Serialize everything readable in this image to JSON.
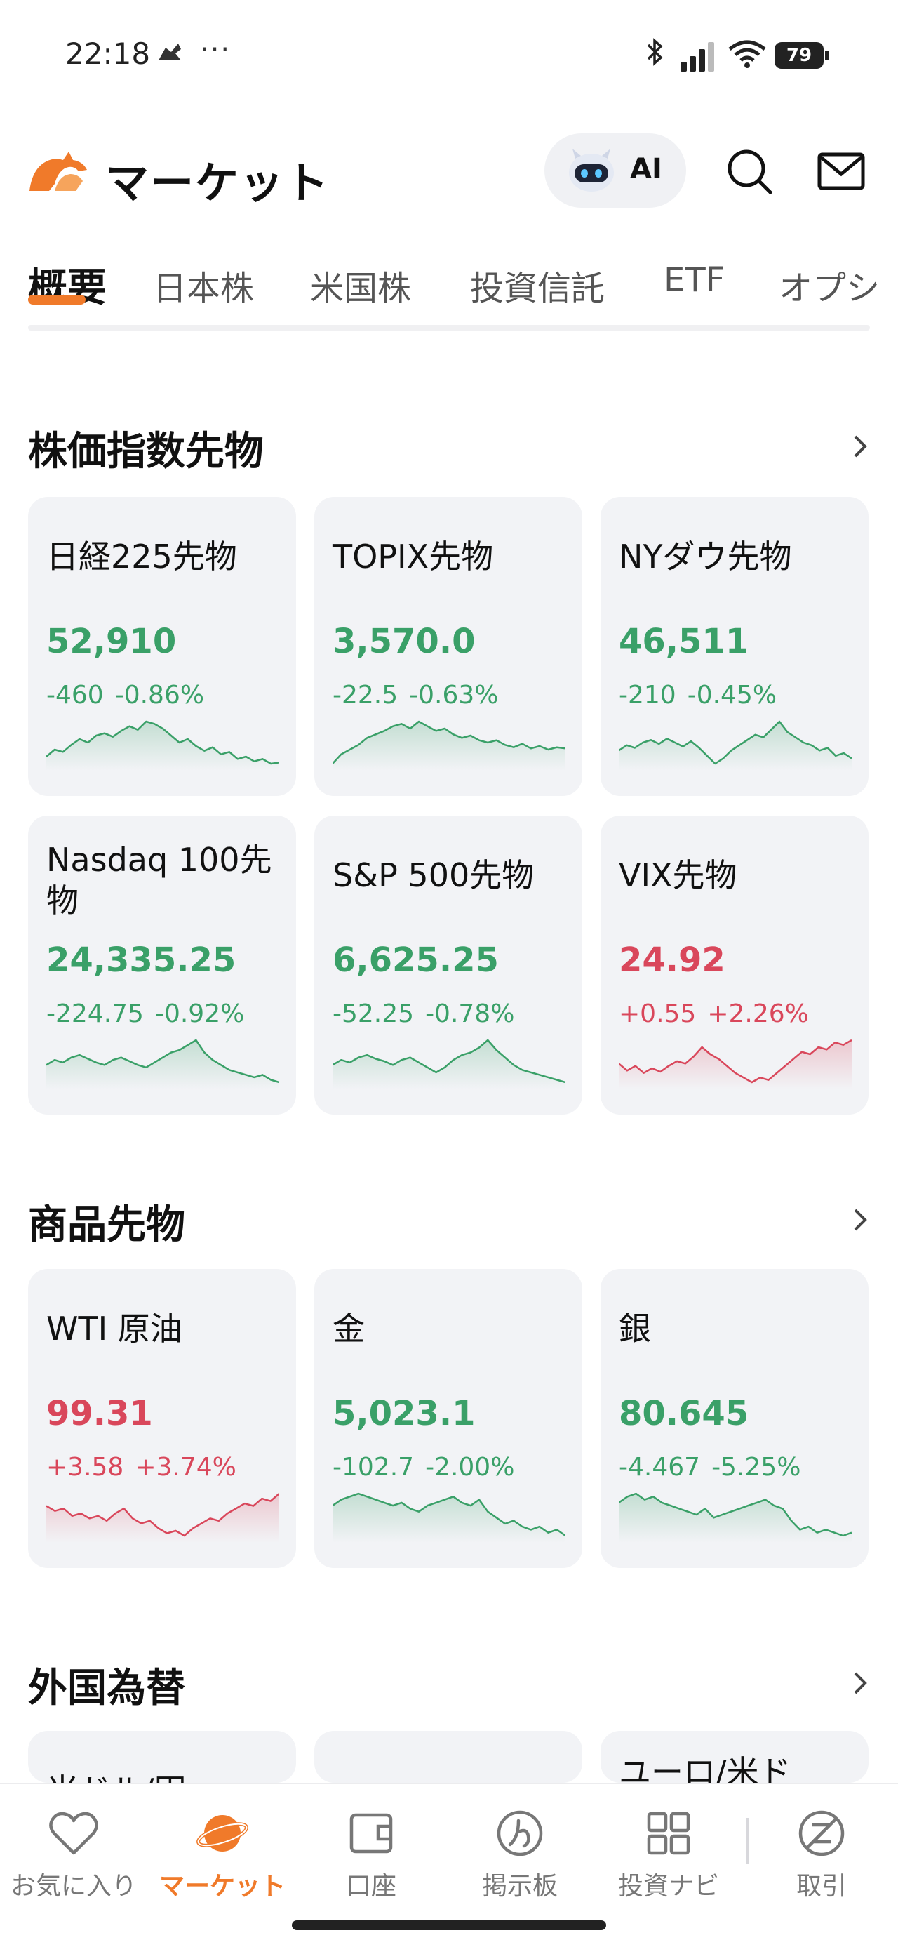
{
  "status": {
    "time": "22:18",
    "dots": "···",
    "battery": "79"
  },
  "header": {
    "title": "マーケット",
    "ai_label": "AI"
  },
  "tabs": [
    "概要",
    "日本株",
    "米国株",
    "投資信託",
    "ETF",
    "オプシ"
  ],
  "sections": {
    "index_futures": {
      "title": "株価指数先物",
      "cards": [
        {
          "name": "日経225先物",
          "price": "52,910",
          "change": "-460",
          "pct": "-0.86%",
          "trend": "down",
          "spark": [
            40,
            46,
            44,
            50,
            55,
            52,
            58,
            60,
            57,
            62,
            66,
            63,
            70,
            68,
            64,
            58,
            52,
            55,
            49,
            45,
            48,
            42,
            44,
            38,
            40,
            36,
            38,
            34,
            35
          ]
        },
        {
          "name": "TOPIX先物",
          "price": "3,570.0",
          "change": "-22.5",
          "pct": "-0.63%",
          "trend": "down",
          "spark": [
            30,
            38,
            42,
            46,
            52,
            55,
            58,
            62,
            64,
            60,
            66,
            62,
            58,
            60,
            55,
            52,
            54,
            50,
            48,
            50,
            46,
            44,
            47,
            43,
            45,
            42,
            44,
            43
          ]
        },
        {
          "name": "NYダウ先物",
          "price": "46,511",
          "change": "-210",
          "pct": "-0.45%",
          "trend": "down",
          "spark": [
            44,
            48,
            46,
            50,
            52,
            49,
            53,
            50,
            47,
            51,
            46,
            40,
            34,
            38,
            44,
            48,
            52,
            56,
            54,
            60,
            66,
            58,
            54,
            50,
            48,
            44,
            46,
            40,
            42,
            38
          ]
        }
      ]
    },
    "index_futures_row2": {
      "cards": [
        {
          "name": "Nasdaq 100先物",
          "price": "24,335.25",
          "change": "-224.75",
          "pct": "-0.92%",
          "trend": "down",
          "spark": [
            50,
            54,
            52,
            56,
            58,
            55,
            52,
            50,
            54,
            56,
            53,
            50,
            48,
            52,
            56,
            60,
            62,
            66,
            70,
            60,
            54,
            50,
            46,
            44,
            42,
            40,
            42,
            38,
            36
          ]
        },
        {
          "name": "S&P 500先物",
          "price": "6,625.25",
          "change": "-52.25",
          "pct": "-0.78%",
          "trend": "down",
          "spark": [
            50,
            54,
            52,
            56,
            58,
            55,
            53,
            50,
            54,
            56,
            52,
            48,
            44,
            48,
            54,
            58,
            60,
            64,
            70,
            62,
            56,
            50,
            46,
            44,
            42,
            40,
            38,
            36
          ]
        },
        {
          "name": "VIX先物",
          "price": "24.92",
          "change": "+0.55",
          "pct": "+2.26%",
          "trend": "up",
          "spark": [
            52,
            46,
            50,
            44,
            48,
            45,
            50,
            54,
            52,
            58,
            66,
            60,
            56,
            50,
            44,
            40,
            36,
            40,
            38,
            44,
            50,
            56,
            62,
            60,
            66,
            64,
            70,
            68,
            72
          ]
        }
      ]
    },
    "commodity_futures": {
      "title": "商品先物",
      "cards": [
        {
          "name": "WTI 原油",
          "price": "99.31",
          "change": "+3.58",
          "pct": "+3.74%",
          "trend": "up",
          "spark": [
            60,
            56,
            58,
            52,
            54,
            50,
            52,
            48,
            54,
            58,
            50,
            46,
            48,
            42,
            38,
            40,
            36,
            42,
            46,
            50,
            48,
            54,
            58,
            62,
            60,
            66,
            64,
            70
          ]
        },
        {
          "name": "金",
          "price": "5,023.1",
          "change": "-102.7",
          "pct": "-2.00%",
          "trend": "down",
          "spark": [
            56,
            60,
            62,
            64,
            62,
            60,
            58,
            56,
            58,
            54,
            52,
            56,
            58,
            60,
            62,
            58,
            56,
            60,
            52,
            48,
            44,
            46,
            42,
            40,
            42,
            38,
            40,
            36
          ]
        },
        {
          "name": "銀",
          "price": "80.645",
          "change": "-4.467",
          "pct": "-5.25%",
          "trend": "down",
          "spark": [
            60,
            64,
            66,
            62,
            64,
            60,
            58,
            56,
            54,
            52,
            56,
            50,
            52,
            54,
            56,
            58,
            60,
            62,
            58,
            56,
            48,
            42,
            44,
            40,
            42,
            40,
            38,
            40
          ]
        }
      ]
    },
    "forex": {
      "title": "外国為替",
      "partial_cards": [
        "米ドル/円",
        "",
        "ユーロ/米ド"
      ]
    }
  },
  "bottom_nav": [
    {
      "label": "お気に入り",
      "icon": "heart-icon"
    },
    {
      "label": "マーケット",
      "icon": "planet-icon"
    },
    {
      "label": "口座",
      "icon": "wallet-icon"
    },
    {
      "label": "掲示板",
      "icon": "board-icon"
    },
    {
      "label": "投資ナビ",
      "icon": "grid-icon"
    },
    {
      "label": "取引",
      "icon": "trade-icon"
    }
  ],
  "colors": {
    "accent": "#f07a2a",
    "up": "#d9475b",
    "down": "#3aa068",
    "card_bg": "#f2f3f6"
  }
}
